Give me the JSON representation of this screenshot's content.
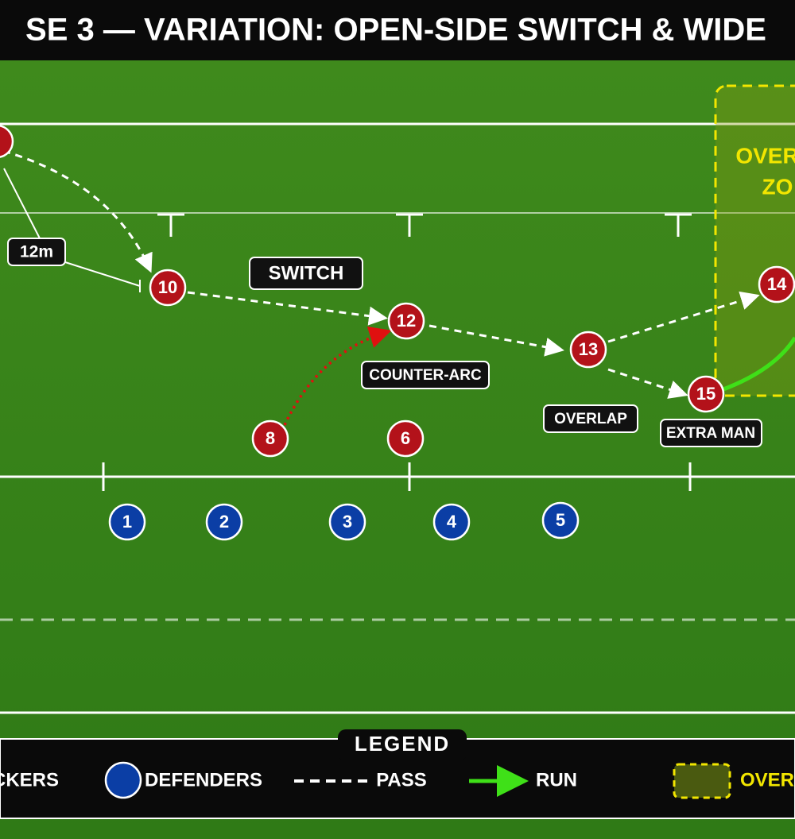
{
  "header": {
    "title": "SE 3 — VARIATION: OPEN-SIDE SWITCH & WIDE"
  },
  "measure": {
    "label": "12m"
  },
  "annotations": [
    "SWITCH",
    "COUNTER-ARC",
    "OVERLAP",
    "EXTRA MAN"
  ],
  "zone": {
    "line1": "OVER",
    "line2": "ZO"
  },
  "attackers": [
    "10",
    "12",
    "13",
    "14",
    "15",
    "8",
    "6"
  ],
  "defenders": [
    "1",
    "2",
    "3",
    "4",
    "5"
  ],
  "legend": {
    "title": "LEGEND",
    "items": [
      "CKERS",
      "DEFENDERS",
      "PASS",
      "RUN",
      "OVER"
    ]
  }
}
